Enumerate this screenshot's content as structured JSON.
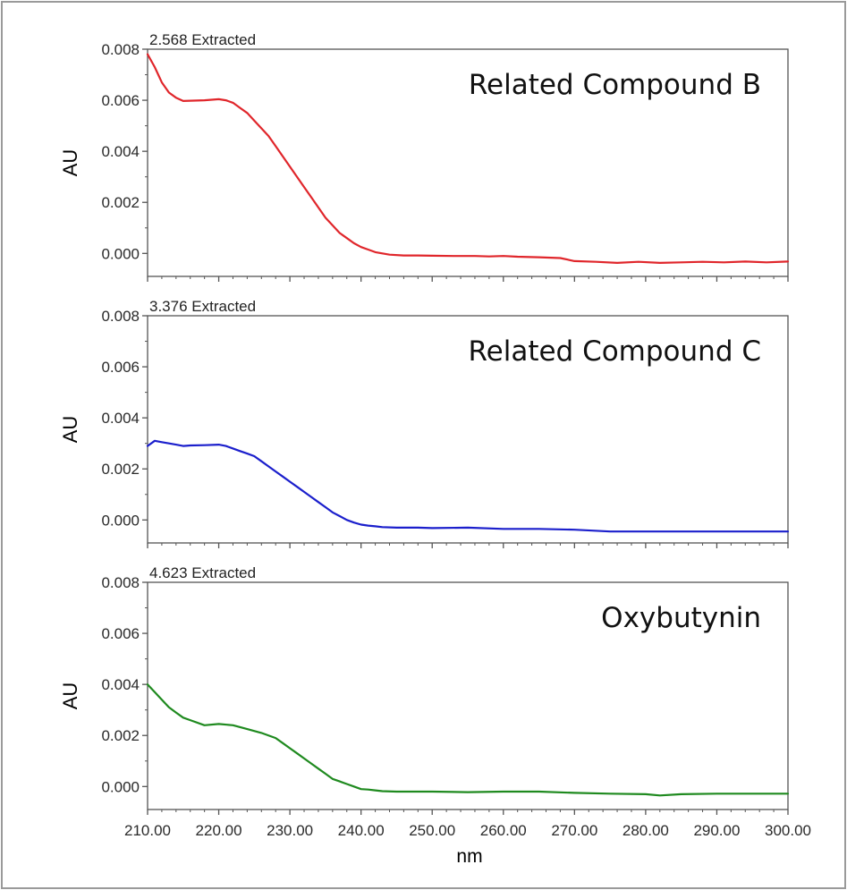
{
  "colors": {
    "red": "#e0262b",
    "blue": "#1b1fcc",
    "green": "#1f8a1f",
    "axis": "#555555"
  },
  "chart_data": [
    {
      "type": "line",
      "title": "2.568 Extracted",
      "annotation": "Related Compound B",
      "ylabel": "AU",
      "xlabel": "nm",
      "xlim": [
        210,
        300
      ],
      "ylim": [
        -0.0009,
        0.008
      ],
      "yticks": [
        "0.008",
        "0.006",
        "0.004",
        "0.002",
        "0.000"
      ],
      "xticks": [
        "210.00",
        "220.00",
        "230.00",
        "240.00",
        "250.00",
        "260.00",
        "270.00",
        "280.00",
        "290.00",
        "300.00"
      ],
      "series": [
        {
          "name": "Related Compound B",
          "color": "#e0262b",
          "x": [
            210,
            211,
            212,
            213,
            214,
            215,
            216,
            218,
            220,
            221,
            222,
            223,
            224,
            225,
            226,
            227,
            228,
            229,
            230,
            231,
            232,
            233,
            234,
            235,
            236,
            237,
            238,
            239,
            240,
            241,
            242,
            243,
            244,
            246,
            248,
            250,
            253,
            256,
            258,
            260,
            262,
            265,
            268,
            270,
            273,
            276,
            279,
            282,
            285,
            288,
            291,
            294,
            297,
            300
          ],
          "y": [
            0.0078,
            0.0073,
            0.0067,
            0.0063,
            0.0061,
            0.00597,
            0.00598,
            0.006,
            0.00604,
            0.006,
            0.0059,
            0.0057,
            0.0055,
            0.0052,
            0.0049,
            0.0046,
            0.0042,
            0.0038,
            0.0034,
            0.003,
            0.0026,
            0.0022,
            0.0018,
            0.0014,
            0.0011,
            0.0008,
            0.0006,
            0.0004,
            0.00025,
            0.00015,
            5e-05,
            0.0,
            -5e-05,
            -8e-05,
            -8e-05,
            -9e-05,
            -0.0001,
            -0.0001,
            -0.00012,
            -0.0001,
            -0.00013,
            -0.00015,
            -0.00018,
            -0.0003,
            -0.00033,
            -0.00037,
            -0.00033,
            -0.00037,
            -0.00035,
            -0.00033,
            -0.00035,
            -0.00032,
            -0.00035,
            -0.00032
          ]
        }
      ]
    },
    {
      "type": "line",
      "title": "3.376 Extracted",
      "annotation": "Related Compound C",
      "ylabel": "AU",
      "xlabel": "nm",
      "xlim": [
        210,
        300
      ],
      "ylim": [
        -0.0009,
        0.008
      ],
      "yticks": [
        "0.008",
        "0.006",
        "0.004",
        "0.002",
        "0.000"
      ],
      "xticks": [
        "210.00",
        "220.00",
        "230.00",
        "240.00",
        "250.00",
        "260.00",
        "270.00",
        "280.00",
        "290.00",
        "300.00"
      ],
      "series": [
        {
          "name": "Related Compound C",
          "color": "#1b1fcc",
          "x": [
            210,
            211,
            212,
            213,
            214,
            215,
            216,
            218,
            220,
            221,
            222,
            223,
            224,
            225,
            226,
            227,
            228,
            229,
            230,
            231,
            232,
            233,
            234,
            235,
            236,
            237,
            238,
            239,
            240,
            241,
            242,
            243,
            245,
            248,
            250,
            255,
            260,
            265,
            270,
            275,
            280,
            285,
            290,
            295,
            300
          ],
          "y": [
            0.0029,
            0.0031,
            0.00305,
            0.003,
            0.00295,
            0.0029,
            0.00292,
            0.00293,
            0.00295,
            0.0029,
            0.0028,
            0.0027,
            0.0026,
            0.0025,
            0.0023,
            0.0021,
            0.0019,
            0.0017,
            0.0015,
            0.0013,
            0.0011,
            0.0009,
            0.0007,
            0.0005,
            0.0003,
            0.00015,
            0.0,
            -0.0001,
            -0.00018,
            -0.00022,
            -0.00025,
            -0.00028,
            -0.0003,
            -0.0003,
            -0.00032,
            -0.0003,
            -0.00035,
            -0.00035,
            -0.00038,
            -0.00045,
            -0.00045,
            -0.00045,
            -0.00045,
            -0.00045,
            -0.00045
          ]
        }
      ]
    },
    {
      "type": "line",
      "title": "4.623 Extracted",
      "annotation": "Oxybutynin",
      "ylabel": "AU",
      "xlabel": "nm",
      "xlim": [
        210,
        300
      ],
      "ylim": [
        -0.0009,
        0.008
      ],
      "yticks": [
        "0.008",
        "0.006",
        "0.004",
        "0.002",
        "0.000"
      ],
      "xticks": [
        "210.00",
        "220.00",
        "230.00",
        "240.00",
        "250.00",
        "260.00",
        "270.00",
        "280.00",
        "290.00",
        "300.00"
      ],
      "series": [
        {
          "name": "Oxybutynin",
          "color": "#1f8a1f",
          "x": [
            210,
            211,
            212,
            213,
            214,
            215,
            216,
            218,
            220,
            222,
            224,
            226,
            228,
            229,
            230,
            231,
            232,
            233,
            234,
            235,
            236,
            237,
            238,
            239,
            240,
            241,
            242,
            243,
            245,
            248,
            250,
            255,
            260,
            265,
            270,
            275,
            280,
            282,
            285,
            290,
            295,
            300
          ],
          "y": [
            0.004,
            0.0037,
            0.0034,
            0.0031,
            0.0029,
            0.0027,
            0.0026,
            0.0024,
            0.00245,
            0.0024,
            0.00225,
            0.0021,
            0.0019,
            0.0017,
            0.0015,
            0.0013,
            0.0011,
            0.0009,
            0.0007,
            0.0005,
            0.0003,
            0.0002,
            0.0001,
            0.0,
            -0.0001,
            -0.00012,
            -0.00015,
            -0.00018,
            -0.0002,
            -0.0002,
            -0.0002,
            -0.00022,
            -0.0002,
            -0.0002,
            -0.00025,
            -0.00028,
            -0.0003,
            -0.00035,
            -0.0003,
            -0.00028,
            -0.00028,
            -0.00028
          ]
        }
      ]
    }
  ]
}
